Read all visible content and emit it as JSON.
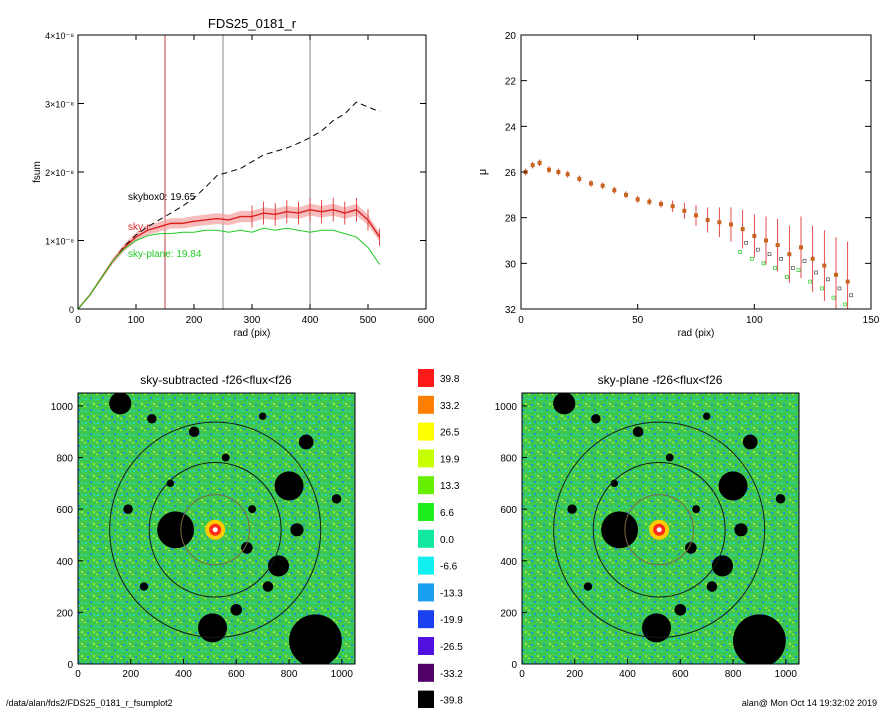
{
  "footer": {
    "path": "/data/alan/fds2/FDS25_0181_r_fsumplot2",
    "user_time": "alan@  Mon Oct 14 19:32:02 2019"
  },
  "colors": {
    "observed": "#000000",
    "sky_ring": "#dd2222",
    "sky_plane": "#22cc22",
    "band": "#f4a0a0",
    "marker_brown": "#c8641e",
    "map_green": "#3ec850",
    "map_cyan": "#20d8c0",
    "map_blue": "#1f8fe0"
  },
  "chart_data": [
    {
      "type": "line",
      "title": "FDS25_0181_r",
      "xlabel": "rad (pix)",
      "ylabel": "fsum",
      "xlim": [
        0,
        600
      ],
      "ylim": [
        0,
        4e-08
      ],
      "x_ticks": [
        "0",
        "100",
        "200",
        "300",
        "400",
        "500",
        "600"
      ],
      "y_ticks": [
        "0",
        "1×10⁻⁸",
        "2×10⁻⁸",
        "3×10⁻⁸",
        "4×10⁻⁸"
      ],
      "vlines": [
        150,
        250,
        400
      ],
      "annotations": [
        {
          "text": "skybox0: 19.65",
          "series": "skybox0"
        },
        {
          "text": "sky-r",
          "series": "sky-ring"
        },
        {
          "text": "sky-plane: 19.84",
          "series": "sky-plane"
        }
      ],
      "series": [
        {
          "name": "skybox0",
          "style": "dashed",
          "x": [
            0,
            20,
            40,
            60,
            80,
            100,
            120,
            140,
            160,
            180,
            200,
            220,
            240,
            260,
            280,
            300,
            320,
            340,
            360,
            380,
            400,
            420,
            440,
            460,
            480,
            500,
            520
          ],
          "y": [
            0,
            2e-09,
            4.5e-09,
            7e-09,
            9.2e-09,
            1.08e-08,
            1.2e-08,
            1.3e-08,
            1.4e-08,
            1.5e-08,
            1.62e-08,
            1.78e-08,
            1.95e-08,
            2e-08,
            2.05e-08,
            2.15e-08,
            2.25e-08,
            2.3e-08,
            2.35e-08,
            2.42e-08,
            2.5e-08,
            2.6e-08,
            2.75e-08,
            2.85e-08,
            3.02e-08,
            2.95e-08,
            2.88e-08
          ]
        },
        {
          "name": "sky-ring",
          "style": "solid",
          "x": [
            0,
            20,
            40,
            60,
            80,
            100,
            120,
            140,
            160,
            180,
            200,
            220,
            240,
            260,
            280,
            300,
            320,
            340,
            360,
            380,
            400,
            420,
            440,
            460,
            480,
            500,
            520
          ],
          "y": [
            0,
            2e-09,
            4.5e-09,
            7e-09,
            9e-09,
            1.05e-08,
            1.15e-08,
            1.2e-08,
            1.25e-08,
            1.25e-08,
            1.28e-08,
            1.3e-08,
            1.32e-08,
            1.3e-08,
            1.35e-08,
            1.35e-08,
            1.4e-08,
            1.38e-08,
            1.42e-08,
            1.4e-08,
            1.45e-08,
            1.42e-08,
            1.45e-08,
            1.4e-08,
            1.45e-08,
            1.3e-08,
            1.05e-08
          ]
        },
        {
          "name": "sky-plane",
          "style": "solid",
          "x": [
            0,
            20,
            40,
            60,
            80,
            100,
            120,
            140,
            160,
            180,
            200,
            220,
            240,
            260,
            280,
            300,
            320,
            340,
            360,
            380,
            400,
            420,
            440,
            460,
            480,
            500,
            520
          ],
          "y": [
            0,
            2e-09,
            4.5e-09,
            7e-09,
            8.8e-09,
            1e-08,
            1.07e-08,
            1.1e-08,
            1.1e-08,
            1.12e-08,
            1.12e-08,
            1.15e-08,
            1.15e-08,
            1.12e-08,
            1.15e-08,
            1.12e-08,
            1.18e-08,
            1.15e-08,
            1.18e-08,
            1.15e-08,
            1.12e-08,
            1.15e-08,
            1.15e-08,
            1.1e-08,
            1.05e-08,
            9e-09,
            6.5e-09
          ]
        }
      ]
    },
    {
      "type": "scatter",
      "title": "",
      "xlabel": "rad (pix)",
      "ylabel": "μ",
      "xlim": [
        0,
        150
      ],
      "ylim": [
        32,
        20
      ],
      "y_inverted": true,
      "x_ticks": [
        "0",
        "50",
        "100",
        "150"
      ],
      "y_ticks": [
        "20",
        "22",
        "24",
        "26",
        "28",
        "30",
        "32"
      ],
      "series": [
        {
          "name": "profile",
          "x": [
            2,
            5,
            8,
            12,
            16,
            20,
            25,
            30,
            35,
            40,
            45,
            50,
            55,
            60,
            65,
            70,
            75,
            80,
            85,
            90,
            95,
            100,
            105,
            110,
            115,
            120,
            125,
            130,
            135,
            140
          ],
          "y": [
            26.0,
            25.7,
            25.6,
            25.9,
            26.0,
            26.1,
            26.3,
            26.5,
            26.6,
            26.8,
            27.0,
            27.2,
            27.3,
            27.4,
            27.5,
            27.7,
            27.9,
            28.1,
            28.2,
            28.3,
            28.5,
            28.8,
            29.0,
            29.2,
            29.6,
            29.3,
            29.8,
            30.1,
            30.5,
            30.8
          ]
        }
      ]
    },
    {
      "type": "heatmap",
      "title": "sky-subtracted -f26<flux<f26",
      "xlim": [
        0,
        1050
      ],
      "ylim": [
        0,
        1050
      ],
      "x_ticks": [
        "0",
        "200",
        "400",
        "600",
        "800",
        "1000"
      ],
      "y_ticks": [
        "0",
        "200",
        "400",
        "600",
        "800",
        "1000"
      ],
      "center": [
        520,
        520
      ],
      "ellipse_radii": [
        130,
        250,
        400
      ],
      "masked_sources": [
        [
          370,
          520,
          70
        ],
        [
          160,
          1010,
          42
        ],
        [
          900,
          90,
          100
        ],
        [
          510,
          140,
          55
        ],
        [
          800,
          690,
          55
        ],
        [
          760,
          380,
          40
        ],
        [
          865,
          860,
          28
        ],
        [
          830,
          520,
          25
        ],
        [
          280,
          950,
          18
        ],
        [
          640,
          450,
          22
        ],
        [
          720,
          300,
          20
        ],
        [
          600,
          210,
          22
        ],
        [
          190,
          600,
          18
        ],
        [
          440,
          900,
          20
        ],
        [
          980,
          640,
          18
        ],
        [
          700,
          960,
          14
        ],
        [
          250,
          300,
          16
        ],
        [
          560,
          800,
          15
        ],
        [
          350,
          700,
          14
        ],
        [
          660,
          600,
          15
        ]
      ]
    },
    {
      "type": "heatmap",
      "title": "sky-plane -f26<flux<f26",
      "xlim": [
        0,
        1050
      ],
      "ylim": [
        0,
        1050
      ],
      "x_ticks": [
        "0",
        "200",
        "400",
        "600",
        "800",
        "1000"
      ],
      "y_ticks": [
        "0",
        "200",
        "400",
        "600",
        "800",
        "1000"
      ],
      "center": [
        520,
        520
      ],
      "ellipse_radii": [
        130,
        250,
        400
      ],
      "masked_sources": [
        [
          370,
          520,
          70
        ],
        [
          160,
          1010,
          42
        ],
        [
          900,
          90,
          100
        ],
        [
          510,
          140,
          55
        ],
        [
          800,
          690,
          55
        ],
        [
          760,
          380,
          40
        ],
        [
          865,
          860,
          28
        ],
        [
          830,
          520,
          25
        ],
        [
          280,
          950,
          18
        ],
        [
          640,
          450,
          22
        ],
        [
          720,
          300,
          20
        ],
        [
          600,
          210,
          22
        ],
        [
          190,
          600,
          18
        ],
        [
          440,
          900,
          20
        ],
        [
          980,
          640,
          18
        ],
        [
          700,
          960,
          14
        ],
        [
          250,
          300,
          16
        ],
        [
          560,
          800,
          15
        ],
        [
          350,
          700,
          14
        ],
        [
          660,
          600,
          15
        ]
      ]
    },
    {
      "type": "colorbar",
      "levels": [
        "39.8",
        "33.2",
        "26.5",
        "19.9",
        "13.3",
        "6.6",
        "0.0",
        "-6.6",
        "-13.3",
        "-19.9",
        "-26.5",
        "-33.2",
        "-39.8"
      ],
      "colors": [
        "#ff1a1a",
        "#ff8000",
        "#ffff00",
        "#c8ff00",
        "#66f000",
        "#1eee1e",
        "#10e8a0",
        "#10f0f0",
        "#1aa0f0",
        "#1a40f0",
        "#5010e0",
        "#500068",
        "#000000"
      ]
    }
  ]
}
